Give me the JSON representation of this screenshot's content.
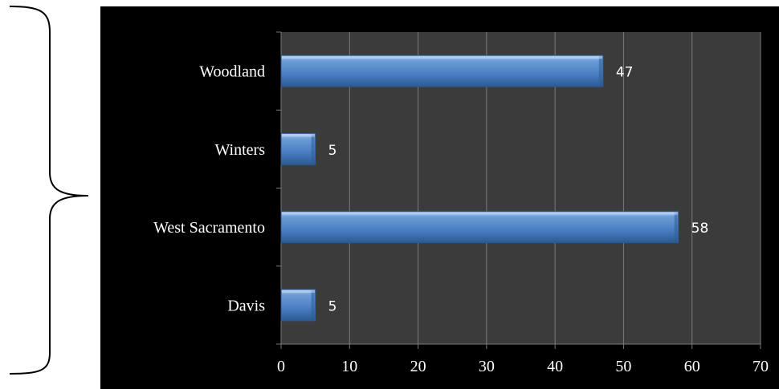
{
  "chart_data": {
    "type": "bar",
    "orientation": "horizontal",
    "categories": [
      "Woodland",
      "Winters",
      "West Sacramento",
      "Davis"
    ],
    "values": [
      47,
      5,
      58,
      5
    ],
    "title": "",
    "xlabel": "",
    "ylabel": "",
    "xlim": [
      0,
      70
    ],
    "xticks": [
      0,
      10,
      20,
      30,
      40,
      50,
      60,
      70
    ],
    "grid": true,
    "legend": "none",
    "data_labels": true,
    "colors": {
      "bar": "#4f81bd",
      "bar_light": "#8fb4e3",
      "bar_dark": "#2c5d95",
      "plot_background": "#3b3b3b",
      "chart_background": "#000000",
      "gridline": "#7a7a7a",
      "text": "#ffffff"
    }
  }
}
